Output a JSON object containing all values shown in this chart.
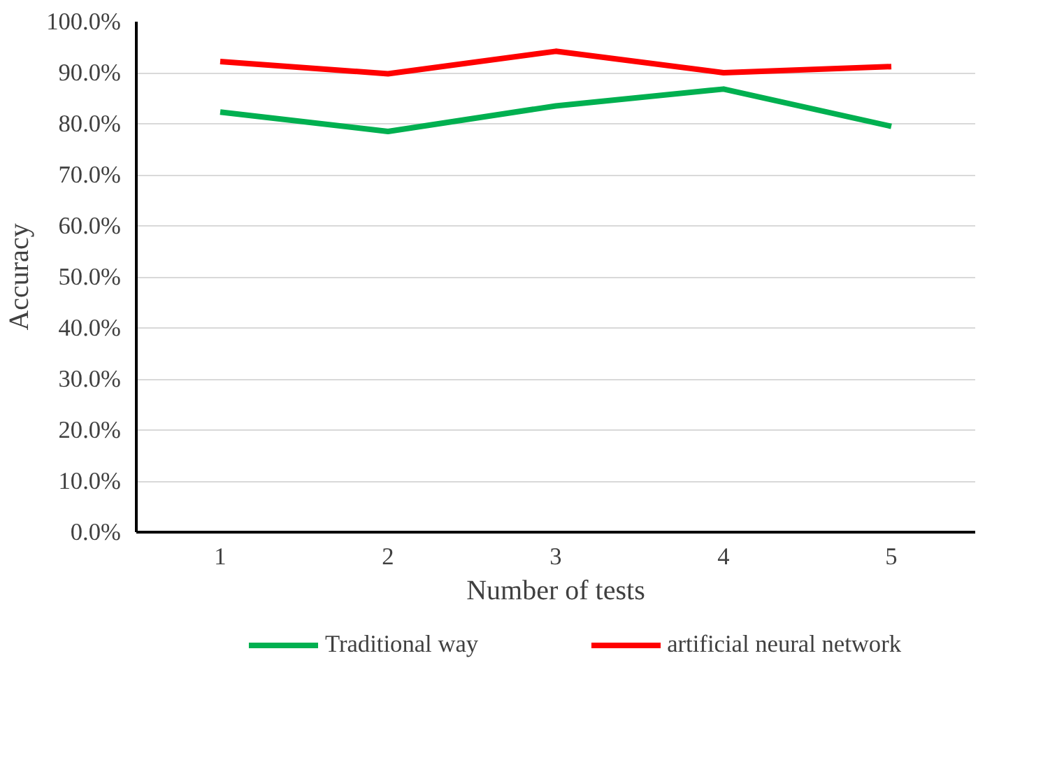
{
  "chart_data": {
    "type": "line",
    "xlabel": "Number of tests",
    "ylabel": "Accuracy",
    "categories": [
      "1",
      "2",
      "3",
      "4",
      "5"
    ],
    "series": [
      {
        "name": "Traditional way",
        "color": "#00b050",
        "values": [
          82.3,
          78.5,
          83.5,
          86.8,
          79.5
        ]
      },
      {
        "name": "artificial neural network",
        "color": "#ff0000",
        "values": [
          92.2,
          89.8,
          94.2,
          90.0,
          91.2
        ]
      }
    ],
    "ylim": [
      0,
      100
    ],
    "yticks": [
      {
        "value": 0,
        "label": "0.0%"
      },
      {
        "value": 10,
        "label": "10.0%"
      },
      {
        "value": 20,
        "label": "20.0%"
      },
      {
        "value": 30,
        "label": "30.0%"
      },
      {
        "value": 40,
        "label": "40.0%"
      },
      {
        "value": 50,
        "label": "50.0%"
      },
      {
        "value": 60,
        "label": "60.0%"
      },
      {
        "value": 70,
        "label": "70.0%"
      },
      {
        "value": 80,
        "label": "80.0%"
      },
      {
        "value": 90,
        "label": "90.0%"
      },
      {
        "value": 100,
        "label": "100.0%"
      }
    ],
    "grid": "y",
    "legend": "bottom",
    "marker": "none",
    "line_style": "solid"
  }
}
